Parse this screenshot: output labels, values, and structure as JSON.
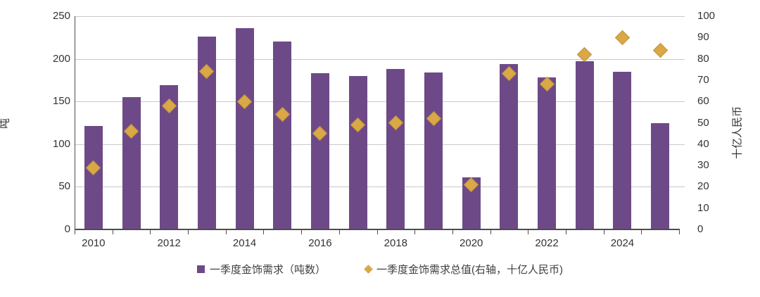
{
  "chart_data": {
    "type": "bar",
    "note": "combo: bar series on left axis + diamond scatter series on right axis",
    "categories": [
      "2010",
      "2011",
      "2012",
      "2013",
      "2014",
      "2015",
      "2016",
      "2017",
      "2018",
      "2019",
      "2020",
      "2021",
      "2022",
      "2023",
      "2024",
      "2025"
    ],
    "x_visible_tick_labels": [
      "2010",
      "2012",
      "2014",
      "2016",
      "2018",
      "2020",
      "2022",
      "2024"
    ],
    "series": [
      {
        "name": "一季度金饰需求（吨数）",
        "marker": "bar",
        "axis": "left",
        "color": "#6d4a87",
        "values": [
          121,
          155,
          169,
          226,
          236,
          220,
          183,
          180,
          188,
          184,
          61,
          194,
          178,
          197,
          185,
          125
        ]
      },
      {
        "name": "一季度金饰需求总值(右轴，十亿人民币)",
        "marker": "diamond",
        "axis": "right",
        "color": "#d9a847",
        "values": [
          29,
          46,
          58,
          74,
          60,
          54,
          45,
          49,
          50,
          52,
          21,
          73,
          68,
          82,
          90,
          84
        ]
      }
    ],
    "left_axis": {
      "title": "吨",
      "min": 0,
      "max": 250,
      "step": 50,
      "tick_labels": [
        "0",
        "50",
        "100",
        "150",
        "200",
        "250"
      ]
    },
    "right_axis": {
      "title": "十亿人民币",
      "min": 0,
      "max": 100,
      "step": 10,
      "tick_labels": [
        "0",
        "10",
        "20",
        "30",
        "40",
        "50",
        "60",
        "70",
        "80",
        "90",
        "100"
      ]
    },
    "grid": "horizontal gridlines at left-axis steps (50,100,150,200,250)",
    "legend_position": "bottom-center",
    "title": ""
  },
  "legend": {
    "bars_label": "一季度金饰需求（吨数）",
    "diamonds_label": "一季度金饰需求总值(右轴，十亿人民币)"
  },
  "axes": {
    "left_title": "吨",
    "right_title": "十亿人民币"
  }
}
